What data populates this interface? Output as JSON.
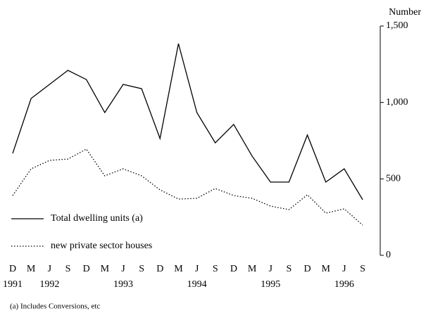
{
  "chart_data": {
    "type": "line",
    "y_axis_label": "Number",
    "footnote": "(a) Includes Conversions, etc",
    "categories": [
      "D",
      "M",
      "J",
      "S",
      "D",
      "M",
      "J",
      "S",
      "D",
      "M",
      "J",
      "S",
      "D",
      "M",
      "J",
      "S",
      "D",
      "M",
      "J",
      "S"
    ],
    "years": [
      "1991",
      null,
      "1992",
      null,
      null,
      null,
      "1993",
      null,
      null,
      null,
      "1994",
      null,
      null,
      null,
      "1995",
      null,
      null,
      null,
      "1996",
      null
    ],
    "series": [
      {
        "name": "Total dwelling units (a)",
        "color": "#000000",
        "dash": "solid",
        "values": [
          667,
          1026,
          1118,
          1210,
          1150,
          934,
          1118,
          1090,
          764,
          1385,
          934,
          736,
          856,
          649,
          479,
          479,
          787,
          479,
          566,
          364
        ]
      },
      {
        "name": "new private sector houses",
        "color": "#000000",
        "dash": "dotted",
        "values": [
          391,
          566,
          621,
          630,
          695,
          520,
          566,
          520,
          428,
          368,
          373,
          437,
          391,
          373,
          322,
          299,
          396,
          276,
          304,
          198
        ]
      }
    ],
    "ylim": [
      0,
      1500
    ],
    "yticks": [
      0,
      500,
      {
        "value": 1000,
        "label": "1,000"
      },
      {
        "value": 1500,
        "label": "1,500"
      }
    ],
    "y_axis_side": "right",
    "legend": "left"
  }
}
